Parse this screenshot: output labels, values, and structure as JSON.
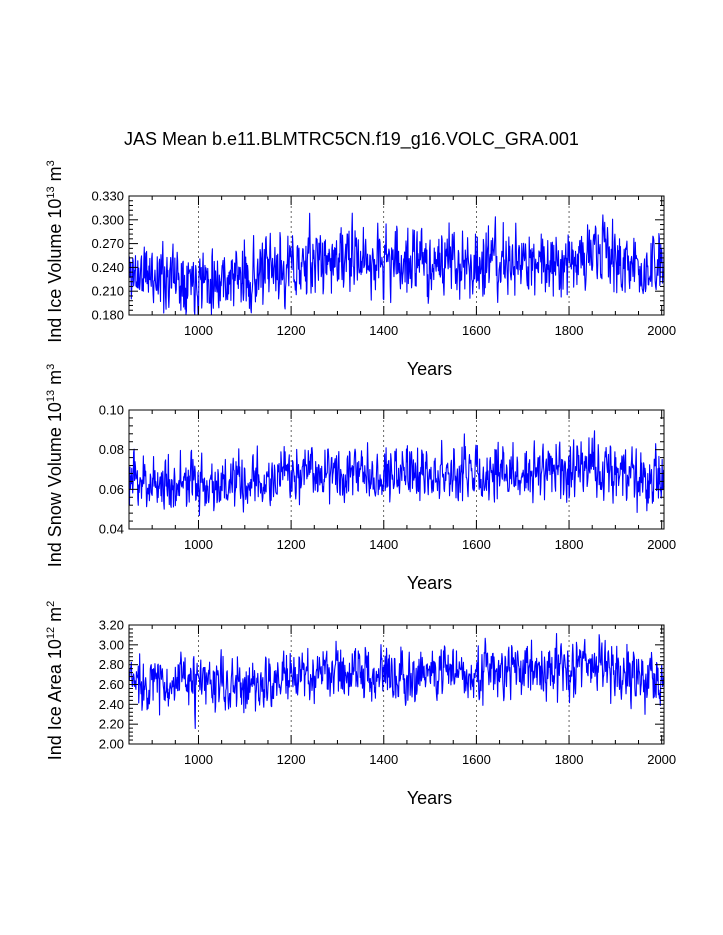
{
  "page": {
    "title": "JAS Mean b.e11.BLMTRC5CN.f19_g16.VOLC_GRA.001"
  },
  "chart_data": [
    {
      "type": "line",
      "title": "JAS Mean b.e11.BLMTRC5CN.f19_g16.VOLC_GRA.001",
      "xlabel": "Years",
      "ylabel_main": "Ind Ice Volume 10",
      "ylabel_exp1": "13",
      "ylabel_mid": " m",
      "ylabel_exp2": "3",
      "xlim": [
        850,
        2005
      ],
      "ylim": [
        0.18,
        0.33
      ],
      "xticks": [
        1000,
        1200,
        1400,
        1600,
        1800,
        2000
      ],
      "yticks": [
        0.18,
        0.21,
        0.24,
        0.27,
        0.3,
        0.33
      ],
      "ytick_labels": [
        "0.180",
        "0.210",
        "0.240",
        "0.270",
        "0.300",
        "0.330"
      ],
      "grid_x": [
        1000,
        1200,
        1400,
        1600,
        1800
      ],
      "line_color": "#0000ff",
      "series": [
        {
          "name": "Ind Ice Volume",
          "mean": 0.238,
          "sd": 0.02,
          "trend": [
            [
              850,
              0.232
            ],
            [
              1100,
              0.226
            ],
            [
              1270,
              0.25
            ],
            [
              1500,
              0.246
            ],
            [
              1700,
              0.244
            ],
            [
              1880,
              0.258
            ],
            [
              1950,
              0.236
            ],
            [
              2005,
              0.238
            ]
          ],
          "seed": 11
        }
      ]
    },
    {
      "type": "line",
      "xlabel": "Years",
      "ylabel_main": "Ind Snow Volume 10",
      "ylabel_exp1": "13",
      "ylabel_mid": " m",
      "ylabel_exp2": "3",
      "xlim": [
        850,
        2005
      ],
      "ylim": [
        0.04,
        0.1
      ],
      "xticks": [
        1000,
        1200,
        1400,
        1600,
        1800,
        2000
      ],
      "yticks": [
        0.04,
        0.06,
        0.08,
        0.1
      ],
      "ytick_labels": [
        "0.04",
        "0.06",
        "0.08",
        "0.10"
      ],
      "grid_x": [
        1000,
        1200,
        1400,
        1600,
        1800
      ],
      "line_color": "#0000ff",
      "series": [
        {
          "name": "Ind Snow Volume",
          "mean": 0.066,
          "sd": 0.0065,
          "trend": [
            [
              850,
              0.064
            ],
            [
              1100,
              0.062
            ],
            [
              1270,
              0.07
            ],
            [
              1500,
              0.068
            ],
            [
              1700,
              0.068
            ],
            [
              1880,
              0.072
            ],
            [
              1950,
              0.064
            ],
            [
              2005,
              0.066
            ]
          ],
          "seed": 23
        }
      ]
    },
    {
      "type": "line",
      "xlabel": "Years",
      "ylabel_main": "Ind Ice Area 10",
      "ylabel_exp1": "12",
      "ylabel_mid": " m",
      "ylabel_exp2": "2",
      "xlim": [
        850,
        2005
      ],
      "ylim": [
        2.0,
        3.2
      ],
      "xticks": [
        1000,
        1200,
        1400,
        1600,
        1800,
        2000
      ],
      "yticks": [
        2.0,
        2.2,
        2.4,
        2.6,
        2.8,
        3.0,
        3.2
      ],
      "ytick_labels": [
        "2.00",
        "2.20",
        "2.40",
        "2.60",
        "2.80",
        "3.00",
        "3.20"
      ],
      "grid_x": [
        1000,
        1200,
        1400,
        1600,
        1800
      ],
      "line_color": "#0000ff",
      "series": [
        {
          "name": "Ind Ice Area",
          "mean": 2.66,
          "sd": 0.13,
          "trend": [
            [
              850,
              2.64
            ],
            [
              1100,
              2.58
            ],
            [
              1270,
              2.72
            ],
            [
              1500,
              2.72
            ],
            [
              1700,
              2.74
            ],
            [
              1880,
              2.8
            ],
            [
              1950,
              2.62
            ],
            [
              2005,
              2.64
            ]
          ],
          "seed": 37
        }
      ]
    }
  ]
}
